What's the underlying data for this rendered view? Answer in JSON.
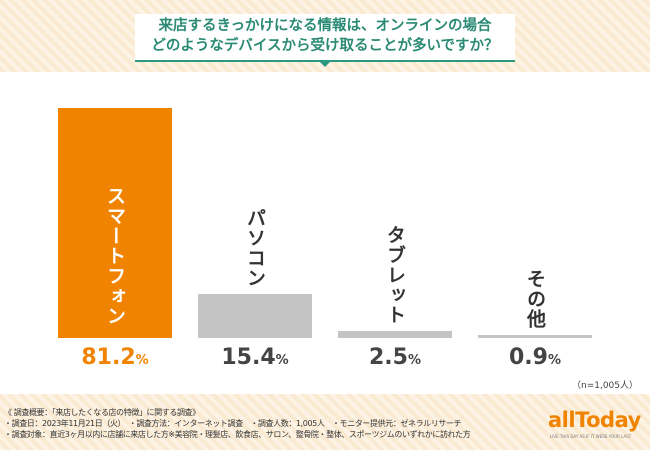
{
  "title_lines": [
    "来店するきっかけになる情報は、オンラインの場合",
    "どのようなデバイスから受け取ることが多いですか？"
  ],
  "chart_data": {
    "type": "bar",
    "categories": [
      "スマートフォン",
      "パソコン",
      "タブレット",
      "その他"
    ],
    "values": [
      81.2,
      15.4,
      2.5,
      0.9
    ],
    "unit": "%",
    "ylim": [
      0,
      100
    ],
    "colors": [
      "#f08300",
      "#c4c4c4",
      "#c4c4c4",
      "#c4c4c4"
    ],
    "value_labels": [
      "81.2",
      "15.4",
      "2.5",
      "0.9"
    ]
  },
  "sample_note": "（n=1,005人）",
  "footer": [
    "《 調査概要：「来店したくなる店の特徴」に関する調査》",
    "・調査日：2023年11月21日（火）　・調査方法：インターネット調査　・調査人数：1,005人　・モニター提供元：ゼネラルリサーチ",
    "・調査対象：直近3ヶ月以内に店舗に来店した方※美容院・理髪店、飲食店、サロン、整骨院・整体、スポーツジムのいずれかに訪れた方"
  ],
  "logo": "allToday",
  "logo_tagline": "LIVE THIS DAY AS IF IT WERE YOUR LAST"
}
